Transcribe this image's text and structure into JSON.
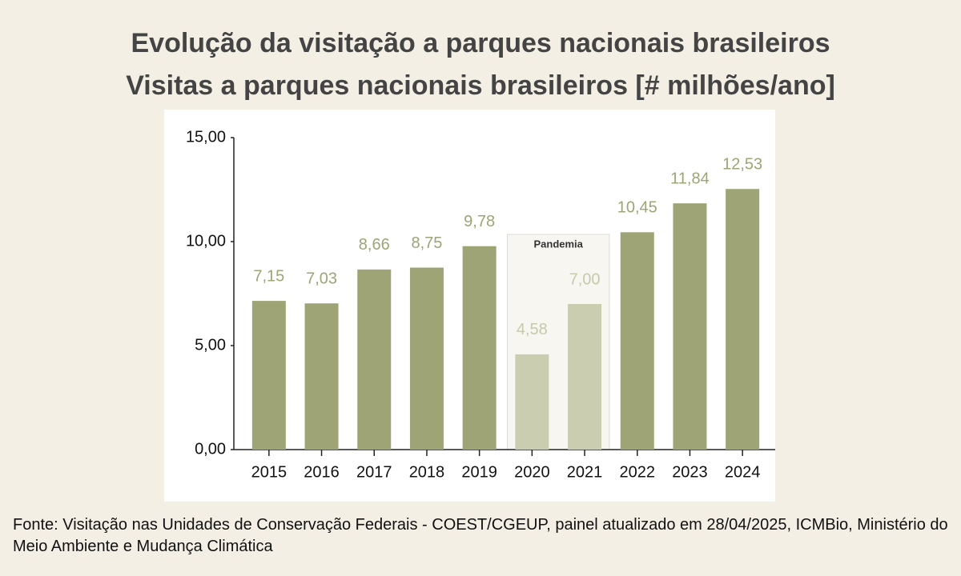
{
  "chart_data": {
    "type": "bar",
    "title": "Evolução da visitação a parques nacionais brasileiros",
    "subtitle": "Visitas a parques nacionais brasileiros [# milhões/ano]",
    "categories": [
      "2015",
      "2016",
      "2017",
      "2018",
      "2019",
      "2020",
      "2021",
      "2022",
      "2023",
      "2024"
    ],
    "values": [
      7.15,
      7.03,
      8.66,
      8.75,
      9.78,
      4.58,
      7.0,
      10.45,
      11.84,
      12.53
    ],
    "value_labels": [
      "7,15",
      "7,03",
      "8,66",
      "8,75",
      "9,78",
      "4,58",
      "7,00",
      "10,45",
      "11,84",
      "12,53"
    ],
    "colors": [
      "#9ea476",
      "#9ea476",
      "#9ea476",
      "#9ea476",
      "#9ea476",
      "#cbcdb1",
      "#cbcdb1",
      "#9ea476",
      "#9ea476",
      "#9ea476"
    ],
    "ylim": [
      0,
      15
    ],
    "yticks": [
      {
        "value": 0,
        "label": "0,00"
      },
      {
        "value": 5,
        "label": "5,00"
      },
      {
        "value": 10,
        "label": "10,00"
      },
      {
        "value": 15,
        "label": "15,00"
      }
    ],
    "grid": false,
    "annotation": {
      "text": "Pandemia",
      "from": "2020",
      "to": "2021"
    },
    "source": "Fonte: Visitação nas Unidades de Conservação Federais - COEST/CGEUP, painel atualizado em 28/04/2025, ICMBio, Ministério do Meio Ambiente e Mudança Climática"
  }
}
